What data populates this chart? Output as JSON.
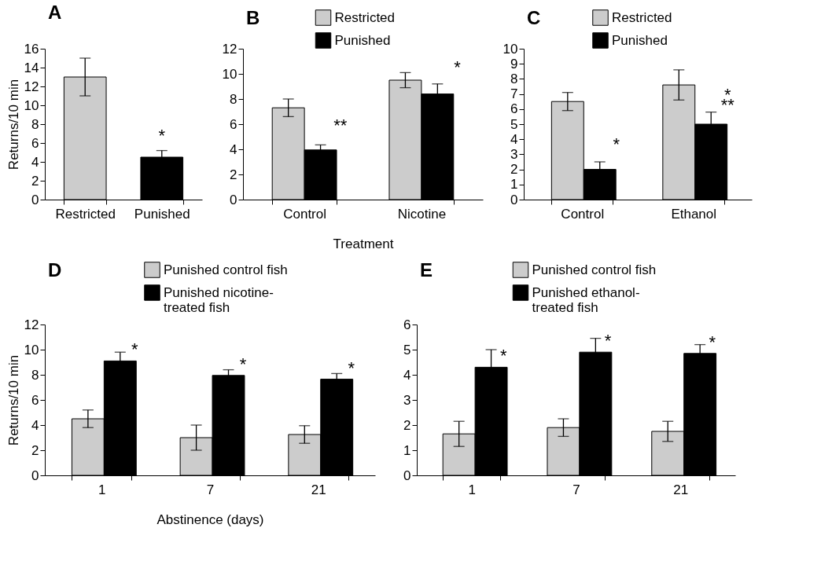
{
  "chart_data": [
    {
      "type": "bar",
      "title": "A",
      "ylabel": "Returns/10 min",
      "categories": [
        "Restricted",
        "Punished"
      ],
      "values": [
        13,
        4.5
      ],
      "colors": [
        "#cccccc",
        "#000000"
      ],
      "errors": [
        2,
        0.7
      ],
      "ylim": [
        0,
        16
      ],
      "yticks": [
        0,
        2,
        4,
        6,
        8,
        10,
        12,
        14,
        16
      ],
      "annotations": [
        {
          "text": "*",
          "x": "Punished",
          "y": 5.6
        }
      ]
    },
    {
      "type": "bar",
      "title": "B",
      "xlabel": "Treatment",
      "categories": [
        "Control",
        "Nicotine"
      ],
      "legend": "top right",
      "series": [
        {
          "name": "Restricted",
          "color": "#cccccc",
          "values": [
            7.3,
            9.5
          ],
          "errors": [
            0.7,
            0.6
          ]
        },
        {
          "name": "Punished",
          "color": "#000000",
          "values": [
            3.95,
            8.4
          ],
          "errors": [
            0.4,
            0.8
          ]
        }
      ],
      "ylim": [
        0,
        12
      ],
      "yticks": [
        0,
        2,
        4,
        6,
        8,
        10,
        12
      ],
      "annotations": [
        {
          "text": "**",
          "x": "Control",
          "y": 5.0
        },
        {
          "text": "*",
          "x": "Nicotine",
          "y": 9.6
        }
      ]
    },
    {
      "type": "bar",
      "title": "C",
      "categories": [
        "Control",
        "Ethanol"
      ],
      "legend": "top right",
      "series": [
        {
          "name": "Restricted",
          "color": "#cccccc",
          "values": [
            6.5,
            7.6
          ],
          "errors": [
            0.6,
            1
          ]
        },
        {
          "name": "Punished",
          "color": "#000000",
          "values": [
            2.0,
            5.0
          ],
          "errors": [
            0.5,
            0.8
          ]
        }
      ],
      "ylim": [
        0,
        10
      ],
      "yticks": [
        0,
        1,
        2,
        3,
        4,
        5,
        6,
        7,
        8,
        9,
        10
      ],
      "annotations": [
        {
          "text": "*",
          "x": "Control",
          "y": 2.9
        },
        {
          "text": "*",
          "x": "Ethanol",
          "y": 6.2
        },
        {
          "text": "**",
          "x": "Ethanol",
          "y": 5.5
        }
      ]
    },
    {
      "type": "bar",
      "title": "D",
      "ylabel": "Returns/10 min",
      "xlabel": "Abstinence (days)",
      "categories": [
        "1",
        "7",
        "21"
      ],
      "legend": "top",
      "series": [
        {
          "name": "Punished control fish",
          "color": "#cccccc",
          "values": [
            4.5,
            3.0,
            3.25
          ],
          "errors": [
            0.7,
            1,
            0.7
          ]
        },
        {
          "name": "Punished nicotine-treated fish",
          "color": "#000000",
          "values": [
            9.1,
            7.95,
            7.65
          ],
          "errors": [
            0.7,
            0.45,
            0.45
          ]
        }
      ],
      "ylim": [
        0,
        12
      ],
      "yticks": [
        0,
        2,
        4,
        6,
        8,
        10,
        12
      ],
      "annotations": [
        {
          "text": "*",
          "x": "1",
          "y": 9.1
        },
        {
          "text": "*",
          "x": "7",
          "y": 7.95
        },
        {
          "text": "*",
          "x": "21",
          "y": 7.65
        }
      ]
    },
    {
      "type": "bar",
      "title": "E",
      "categories": [
        "1",
        "7",
        "21"
      ],
      "legend": "top",
      "series": [
        {
          "name": "Punished control fish",
          "color": "#cccccc",
          "values": [
            1.65,
            1.9,
            1.75
          ],
          "errors": [
            0.5,
            0.35,
            0.4
          ]
        },
        {
          "name": "Punished ethanol-treated fish",
          "color": "#000000",
          "values": [
            4.3,
            4.9,
            4.85
          ],
          "errors": [
            0.7,
            0.55,
            0.35
          ]
        }
      ],
      "ylim": [
        0,
        6
      ],
      "yticks": [
        0,
        1,
        2,
        3,
        4,
        5,
        6
      ],
      "annotations": [
        {
          "text": "*",
          "x": "1",
          "y": 4.3
        },
        {
          "text": "*",
          "x": "7",
          "y": 4.9
        },
        {
          "text": "*",
          "x": "21",
          "y": 4.85
        }
      ]
    }
  ]
}
